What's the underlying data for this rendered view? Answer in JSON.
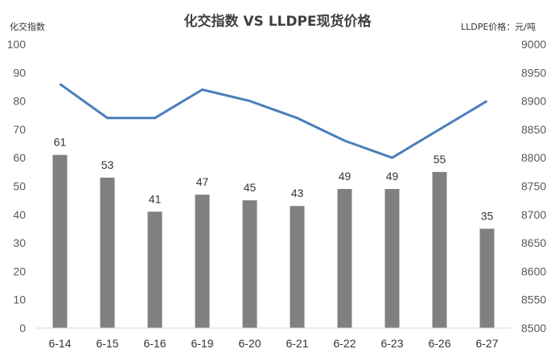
{
  "chart_data": {
    "type": "bar",
    "title": "化交指数 VS LLDPE现货价格",
    "ylabel_left": "化交指数",
    "ylabel_right": "LLDPE价格：元/吨",
    "categories": [
      "6-14",
      "6-15",
      "6-16",
      "6-19",
      "6-20",
      "6-21",
      "6-22",
      "6-23",
      "6-26",
      "6-27"
    ],
    "series": [
      {
        "name": "化交指数",
        "type": "bar",
        "axis": "left",
        "color": "#808080",
        "values": [
          61,
          53,
          41,
          47,
          45,
          43,
          49,
          49,
          55,
          35
        ]
      },
      {
        "name": "LLDPE现货价格",
        "type": "line",
        "axis": "right",
        "color": "#4a7ebb",
        "values": [
          8930,
          8870,
          8870,
          8920,
          8900,
          8870,
          8830,
          8800,
          8850,
          8900
        ]
      }
    ],
    "ylim_left": [
      0,
      100
    ],
    "ylim_right": [
      8500,
      9000
    ],
    "yticks_left": [
      "0",
      "10",
      "20",
      "30",
      "40",
      "50",
      "60",
      "70",
      "80",
      "90",
      "100"
    ],
    "yticks_right": [
      "8500",
      "8550",
      "8600",
      "8650",
      "8700",
      "8750",
      "8800",
      "8850",
      "8900",
      "8950",
      "9000"
    ],
    "grid": false
  }
}
